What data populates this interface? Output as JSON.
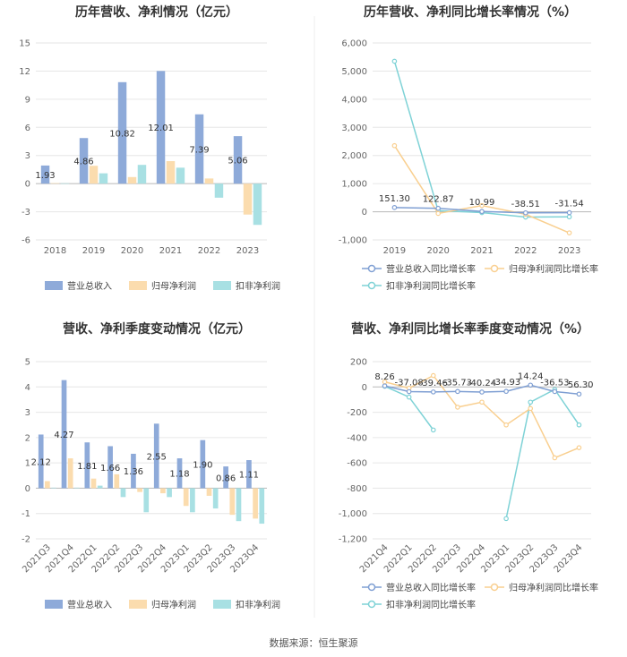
{
  "colors": {
    "revenue": "#8eaad9",
    "net_profit": "#fbdcae",
    "deducted_profit": "#a8e0e3",
    "revenue_line": "#7f9fd3",
    "net_profit_line": "#f9cf8f",
    "deducted_profit_line": "#7ed2d6"
  },
  "source": "数据来源：恒生聚源",
  "chart_data": [
    {
      "type": "bar",
      "title": "历年营收、净利情况（亿元）",
      "categories": [
        "2018",
        "2019",
        "2020",
        "2021",
        "2022",
        "2023"
      ],
      "ylim": [
        -6,
        15
      ],
      "yticks": [
        "15",
        "12",
        "9",
        "6",
        "3",
        "0",
        "-3",
        "-6"
      ],
      "series": [
        {
          "name": "营业总收入",
          "values": [
            1.93,
            4.86,
            10.82,
            12.01,
            7.39,
            5.06
          ]
        },
        {
          "name": "归母净利润",
          "values": [
            0.05,
            1.9,
            0.7,
            2.4,
            0.55,
            -3.3
          ]
        },
        {
          "name": "扣非净利润",
          "values": [
            0.03,
            1.1,
            2.0,
            1.7,
            -1.5,
            -4.4
          ]
        }
      ],
      "data_labels": [
        "1.93",
        "4.86",
        "10.82",
        "12.01",
        "7.39",
        "5.06"
      ],
      "legend": [
        "营业总收入",
        "归母净利润",
        "扣非净利润"
      ],
      "legend_position": "bottom",
      "grid": true
    },
    {
      "type": "line",
      "title": "历年营收、净利同比增长率情况（%）",
      "categories": [
        "2019",
        "2020",
        "2021",
        "2022",
        "2023"
      ],
      "ylim": [
        -1000,
        6000
      ],
      "yticks": [
        "6,000",
        "5,000",
        "4,000",
        "3,000",
        "2,000",
        "1,000",
        "0",
        "-1,000"
      ],
      "series": [
        {
          "name": "营业总收入同比增长率",
          "values": [
            151.3,
            122.87,
            10.99,
            -38.51,
            -31.54
          ]
        },
        {
          "name": "归母净利润同比增长率",
          "values": [
            2350,
            -60,
            220,
            -90,
            -750
          ]
        },
        {
          "name": "扣非净利润同比增长率",
          "values": [
            5350,
            40,
            -30,
            -190,
            -180
          ]
        }
      ],
      "data_labels": [
        "151.30",
        "122.87",
        "10.99",
        "-38.51",
        "-31.54"
      ],
      "legend": [
        "营业总收入同比增长率",
        "归母净利润同比增长率",
        "扣非净利润同比增长率"
      ],
      "legend_position": "bottom",
      "grid": true
    },
    {
      "type": "bar",
      "title": "营收、净利季度变动情况（亿元）",
      "categories": [
        "2021Q3",
        "2021Q4",
        "2022Q1",
        "2022Q2",
        "2022Q3",
        "2022Q4",
        "2023Q1",
        "2023Q2",
        "2023Q3",
        "2023Q4"
      ],
      "ylim": [
        -2,
        5
      ],
      "yticks": [
        "5",
        "4",
        "3",
        "2",
        "1",
        "0",
        "-1",
        "-2"
      ],
      "series": [
        {
          "name": "营业总收入",
          "values": [
            2.12,
            4.27,
            1.81,
            1.66,
            1.36,
            2.55,
            1.18,
            1.9,
            0.86,
            1.11
          ]
        },
        {
          "name": "归母净利润",
          "values": [
            0.28,
            1.18,
            0.38,
            0.55,
            -0.15,
            -0.2,
            -0.7,
            -0.3,
            -1.05,
            -1.2
          ]
        },
        {
          "name": "扣非净利润",
          "values": [
            0.02,
            0.02,
            0.1,
            -0.35,
            -0.95,
            -0.35,
            -0.95,
            -0.8,
            -1.3,
            -1.4
          ]
        }
      ],
      "data_labels": [
        "2.12",
        "4.27",
        "1.81",
        "1.66",
        "1.36",
        "2.55",
        "1.18",
        "1.90",
        "0.86",
        "1.11"
      ],
      "legend": [
        "营业总收入",
        "归母净利润",
        "扣非净利润"
      ],
      "legend_position": "bottom",
      "grid": true
    },
    {
      "type": "line",
      "title": "营收、净利同比增长率季度变动情况（%）",
      "categories": [
        "2021Q4",
        "2022Q1",
        "2022Q2",
        "2022Q3",
        "2022Q4",
        "2023Q1",
        "2023Q2",
        "2023Q3",
        "2023Q4"
      ],
      "ylim": [
        -1200,
        200
      ],
      "yticks": [
        "200",
        "0",
        "-200",
        "-400",
        "-600",
        "-800",
        "-1,000",
        "-1,200"
      ],
      "series": [
        {
          "name": "营业总收入同比增长率",
          "values": [
            8.26,
            -37.08,
            -39.46,
            -35.73,
            -40.24,
            -34.93,
            14.24,
            -36.53,
            -56.3
          ]
        },
        {
          "name": "归母净利润同比增长率",
          "values": [
            40,
            -10,
            90,
            -160,
            -120,
            -300,
            -170,
            -560,
            -480
          ]
        },
        {
          "name": "扣非净利润同比增长率",
          "values": [
            5,
            -80,
            -340,
            null,
            null,
            -1040,
            -120,
            -20,
            -300
          ]
        }
      ],
      "data_labels": [
        "8.26",
        "-37.08",
        "-39.46",
        "-35.73",
        "-40.24",
        "-34.93",
        "14.24",
        "-36.53",
        "-56.30"
      ],
      "legend": [
        "营业总收入同比增长率",
        "归母净利润同比增长率",
        "扣非净利润同比增长率"
      ],
      "legend_position": "bottom",
      "grid": true
    }
  ]
}
